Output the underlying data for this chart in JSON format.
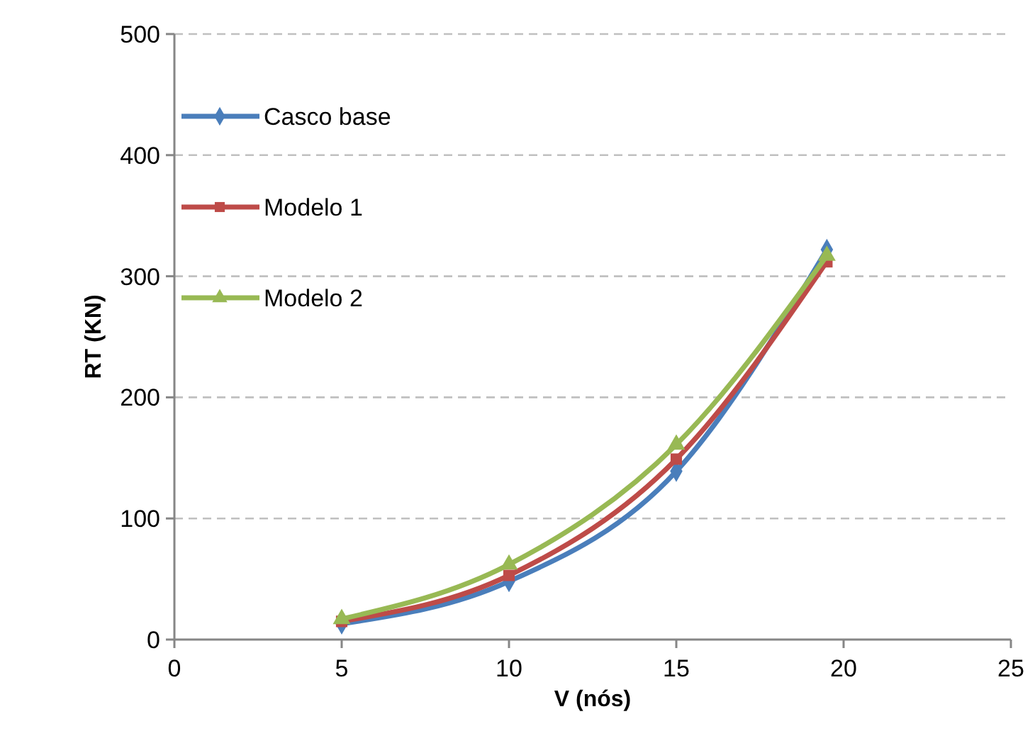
{
  "chart_data": {
    "type": "line",
    "xlabel": "V (nós)",
    "ylabel": "RT (KN)",
    "x": [
      5,
      10,
      15,
      19.5
    ],
    "series": [
      {
        "name": "Casco base",
        "color": "#4a7ebb",
        "marker": "diamond",
        "values": [
          13,
          48,
          139,
          322
        ]
      },
      {
        "name": "Modelo 1",
        "color": "#be4b48",
        "marker": "square",
        "values": [
          15,
          53,
          149,
          312
        ]
      },
      {
        "name": "Modelo 2",
        "color": "#98b954",
        "marker": "triangle",
        "values": [
          17,
          62,
          161,
          317
        ]
      }
    ],
    "xlim": [
      0,
      25
    ],
    "xticks": [
      0,
      5,
      10,
      15,
      20,
      25
    ],
    "ylim": [
      0,
      500
    ],
    "yticks": [
      0,
      100,
      200,
      300,
      400,
      500
    ],
    "grid": "y",
    "legend": "top left"
  }
}
